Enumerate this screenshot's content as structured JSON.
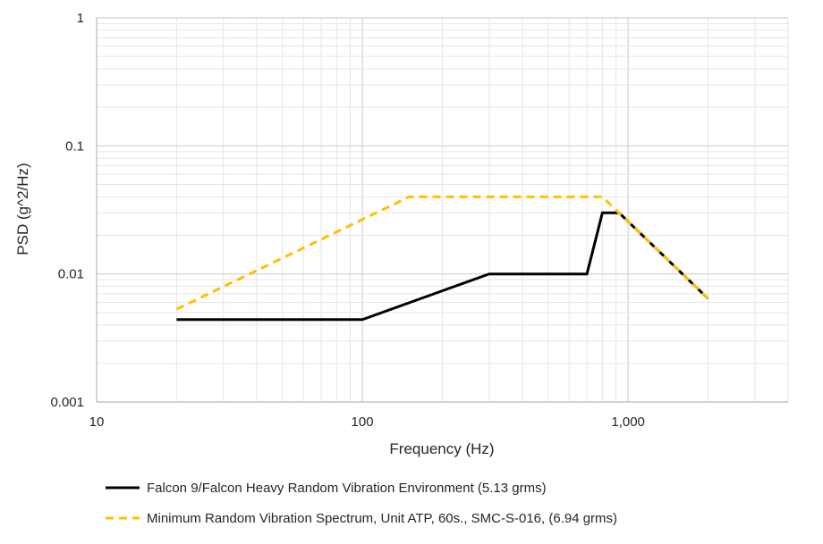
{
  "chart_data": {
    "type": "line",
    "title": "",
    "xlabel": "Frequency (Hz)",
    "ylabel": "PSD (g^2/Hz)",
    "xscale": "log",
    "yscale": "log",
    "xlim": [
      10,
      4000
    ],
    "ylim": [
      0.001,
      1
    ],
    "grid": true,
    "legend_position": "bottom",
    "x_ticks": [
      {
        "value": 10,
        "label": "10"
      },
      {
        "value": 100,
        "label": "100"
      },
      {
        "value": 1000,
        "label": "1,000"
      }
    ],
    "y_ticks": [
      {
        "value": 0.001,
        "label": "0.001"
      },
      {
        "value": 0.01,
        "label": "0.01"
      },
      {
        "value": 0.1,
        "label": "0.1"
      },
      {
        "value": 1,
        "label": "1"
      }
    ],
    "series": [
      {
        "name": "Falcon 9/Falcon Heavy Random Vibration Environment (5.13 grms)",
        "color": "#000000",
        "style": "solid",
        "x": [
          20,
          100,
          300,
          700,
          800,
          925,
          2000
        ],
        "y": [
          0.0044,
          0.0044,
          0.01,
          0.01,
          0.03,
          0.03,
          0.0064
        ]
      },
      {
        "name": "Minimum Random Vibration Spectrum, Unit ATP, 60s., SMC-S-016, (6.94 grms)",
        "color": "#FFC000",
        "style": "dashed",
        "x": [
          20,
          150,
          800,
          2000
        ],
        "y": [
          0.0053,
          0.04,
          0.04,
          0.0064
        ]
      }
    ]
  }
}
